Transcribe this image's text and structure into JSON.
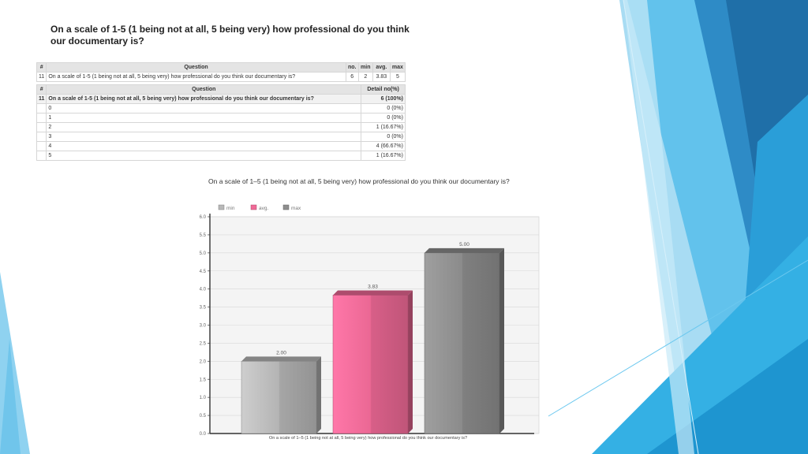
{
  "slide": {
    "title": "On a scale of 1-5 (1 being not at all, 5 being very) how professional do you think our documentary is?"
  },
  "summary_table": {
    "headers": [
      "#",
      "Question",
      "no.",
      "min",
      "avg.",
      "max"
    ],
    "rows": [
      [
        "11",
        "On a scale of 1-5 (1 being not at all, 5 being very) how professional do you think our documentary is?",
        "6",
        "2",
        "3.83",
        "5"
      ]
    ]
  },
  "detail_table": {
    "headers": [
      "#",
      "Question",
      "Detail no(%)"
    ],
    "question_row": [
      "11",
      "On a scale of 1-5 (1 being not at all, 5 being very) how professional do you think our documentary is?",
      "6 (100%)"
    ],
    "rows": [
      [
        "0",
        "0 (0%)"
      ],
      [
        "1",
        "0 (0%)"
      ],
      [
        "2",
        "1 (16.67%)"
      ],
      [
        "3",
        "0 (0%)"
      ],
      [
        "4",
        "4 (66.67%)"
      ],
      [
        "5",
        "1 (16.67%)"
      ]
    ]
  },
  "chart_data": {
    "type": "bar",
    "title": "On a scale of 1–5 (1 being not at all, 5 being very) how professional do you think our documentary is?",
    "xlabel": "On a scale of 1–5 (1 being not at all, 5 being very) how professional do you think our documentary is?",
    "ylabel": "",
    "categories": [
      "min",
      "avg.",
      "max"
    ],
    "values": [
      2.0,
      3.83,
      5.0
    ],
    "value_labels": [
      "2.00",
      "3.83",
      "5.00"
    ],
    "colors": [
      "#b8b8b8",
      "#f06a97",
      "#8e8e8e"
    ],
    "ylim": [
      0,
      6
    ],
    "yticks": [
      "0.0",
      "0.5",
      "1.0",
      "1.5",
      "2.0",
      "2.5",
      "3.0",
      "3.5",
      "4.0",
      "4.5",
      "5.0",
      "5.5",
      "6.0"
    ],
    "legend": [
      "min",
      "avg.",
      "max"
    ],
    "legend_position": "top-left",
    "grid": true
  }
}
